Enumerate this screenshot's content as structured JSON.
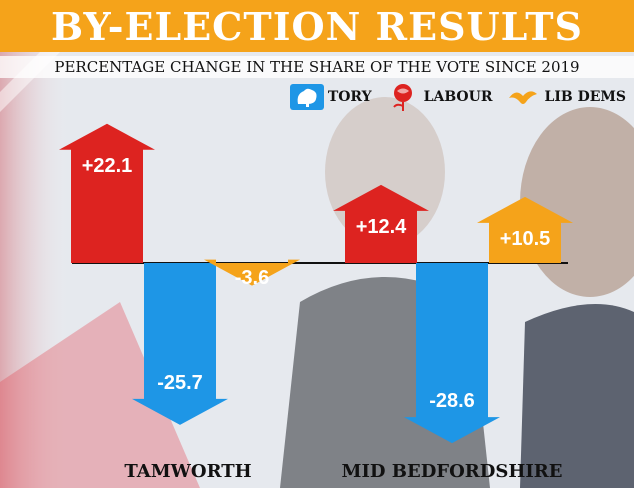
{
  "banner": {
    "title": "BY-ELECTION RESULTS"
  },
  "chart_data": {
    "type": "bar",
    "title": "BY-ELECTION RESULTS",
    "subtitle": "PERCENTAGE CHANGE IN THE SHARE OF THE VOTE SINCE 2019",
    "categories": [
      "TAMWORTH",
      "MID BEDFORDSHIRE"
    ],
    "category_display": [
      "TAMWORTH",
      "MID BEDFORDSHIRE"
    ],
    "series": [
      {
        "name": "TORY",
        "color": "#1e96e6",
        "icon": "tory-tree-icon",
        "values": [
          -25.7,
          -28.6
        ],
        "labels": [
          "-25.7",
          "-28.6"
        ]
      },
      {
        "name": "LABOUR",
        "color": "#dd2320",
        "icon": "labour-rose-icon",
        "values": [
          22.1,
          12.4
        ],
        "labels": [
          "+22.1",
          "+12.4"
        ]
      },
      {
        "name": "LIB DEMS",
        "color": "#f5a31a",
        "icon": "libdem-bird-icon",
        "values": [
          -3.6,
          10.5
        ],
        "labels": [
          "-3.6",
          "+10.5"
        ]
      }
    ],
    "legend_position": "top-right",
    "grid": false
  }
}
